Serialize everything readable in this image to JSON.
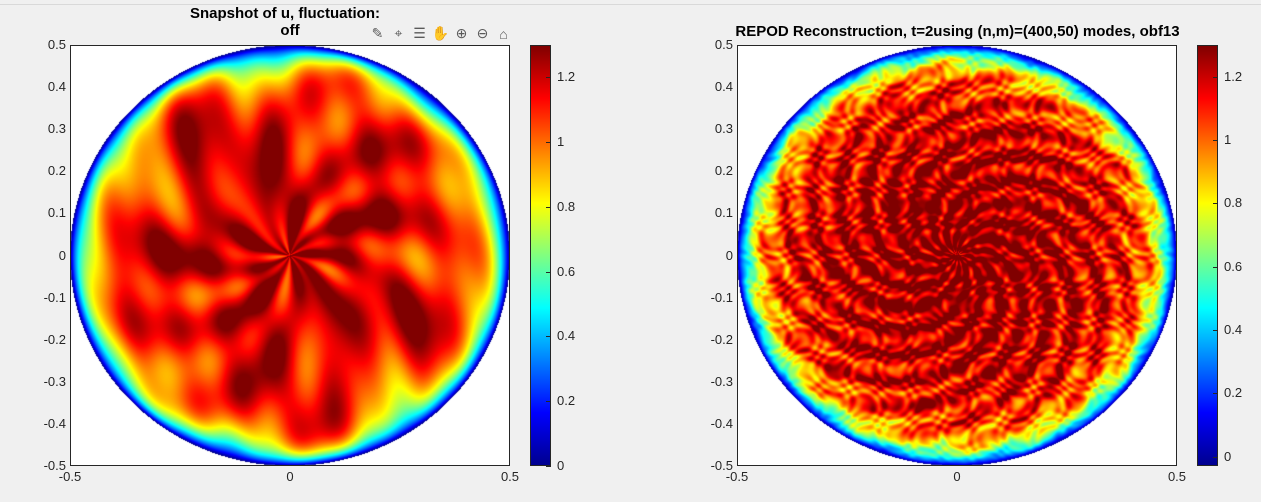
{
  "chart_data": [
    {
      "type": "heatmap",
      "title_line1": "Snapshot of u, fluctuation:",
      "title_line2": "off",
      "xlim": [
        -0.5,
        0.5
      ],
      "ylim": [
        -0.5,
        0.5
      ],
      "x_ticks": [
        "-0.5",
        "0",
        "0.5"
      ],
      "y_ticks": [
        "0.5",
        "0.4",
        "0.3",
        "0.2",
        "0.1",
        "0",
        "-0.1",
        "-0.2",
        "-0.3",
        "-0.4",
        "-0.5"
      ],
      "colorbar": {
        "colormap": "jet",
        "clim": [
          0,
          1.3
        ],
        "ticks": [
          "1.2",
          "1",
          "0.8",
          "0.6",
          "0.4",
          "0.2",
          "0"
        ]
      },
      "field": {
        "domain": "disk",
        "radius": 0.5,
        "edge_value": 0.0,
        "core_value": 1.25,
        "texture": "large-scale swirls"
      }
    },
    {
      "type": "heatmap",
      "title_line1": "REPOD Reconstruction, t=2using (n,m)=(400,50) modes, obf13",
      "xlim": [
        -0.5,
        0.5
      ],
      "ylim": [
        -0.5,
        0.5
      ],
      "x_ticks": [
        "-0.5",
        "0",
        "0.5"
      ],
      "y_ticks": [
        "0.5",
        "0.4",
        "0.3",
        "0.2",
        "0.1",
        "0",
        "-0.1",
        "-0.2",
        "-0.3",
        "-0.4",
        "-0.5"
      ],
      "colorbar": {
        "colormap": "jet",
        "clim": [
          -0.03,
          1.3
        ],
        "ticks": [
          "1.2",
          "1",
          "0.8",
          "0.6",
          "0.4",
          "0.2",
          "0"
        ]
      },
      "field": {
        "domain": "disk",
        "radius": 0.5,
        "edge_value": 0.0,
        "core_value": 1.28,
        "texture": "fine-scale speckle"
      }
    }
  ],
  "toolbar": {
    "icons": [
      "brush-icon",
      "data-tip-icon",
      "legend-icon",
      "pan-hand-icon",
      "zoom-in-icon",
      "zoom-out-icon",
      "home-icon"
    ]
  }
}
